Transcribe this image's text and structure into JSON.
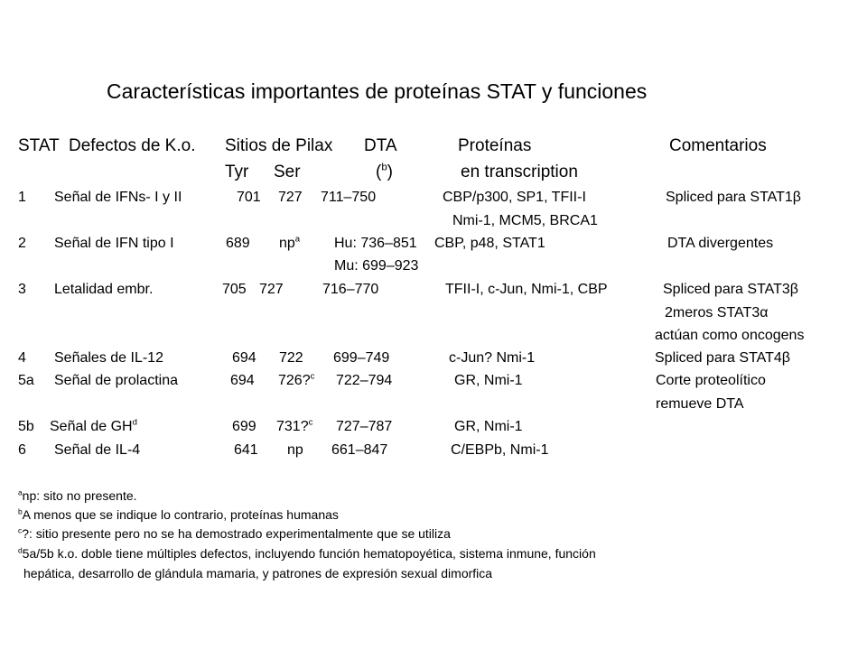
{
  "title": "Características importantes de proteínas STAT y funciones",
  "header": {
    "col_stat": "STAT",
    "col_ko": "Defectos de K.o.",
    "col_sites": "Sitios de Pilax",
    "col_dta": "DTA",
    "col_proteins": "Proteínas",
    "col_comments": "Comentarios",
    "sub_tyr": "Tyr",
    "sub_ser": "Ser",
    "sub_dta_note_open": "(",
    "sub_dta_note_sup": "b",
    "sub_dta_note_close": ")",
    "sub_proteins": "en transcription"
  },
  "rows": [
    {
      "stat": "1",
      "ko": "Señal de IFNs- I y II",
      "tyr": "701",
      "ser": "727",
      "dta": "711–750",
      "proteins": "CBP/p300, SP1, TFII-I",
      "comment": "Spliced para STAT1β",
      "proteins2": "Nmi-1, MCM5, BRCA1"
    },
    {
      "stat": "2",
      "ko": "Señal de IFN tipo I",
      "tyr": "689",
      "ser": "np",
      "ser_sup": "a",
      "dta": "Hu: 736–851",
      "dta2": "Mu: 699–923",
      "proteins": "CBP, p48, STAT1",
      "comment": "DTA divergentes"
    },
    {
      "stat": "3",
      "ko": "Letalidad embr.",
      "tyr": "705",
      "ser": "727",
      "dta": "716–770",
      "proteins": "TFII-I, c-Jun, Nmi-1, CBP",
      "comment": "Spliced para STAT3β",
      "comment2": "2meros STAT3α",
      "comment3": "actúan como oncogens"
    },
    {
      "stat": "4",
      "ko": "Señales de IL-12",
      "tyr": "694",
      "ser": "722",
      "dta": "699–749",
      "proteins": "c-Jun? Nmi-1",
      "comment": "Spliced para STAT4β"
    },
    {
      "stat": "5a",
      "ko": "Señal de prolactina",
      "tyr": "694",
      "ser": "726?",
      "ser_sup": "c",
      "dta": "722–794",
      "proteins": "GR, Nmi-1",
      "comment": "Corte proteolítico",
      "comment2": "remueve DTA"
    },
    {
      "stat": "5b",
      "ko": "Señal de GH",
      "ko_sup": "d",
      "tyr": "699",
      "ser": "731?",
      "ser_sup": "c",
      "dta": "727–787",
      "proteins": "GR, Nmi-1"
    },
    {
      "stat": "6",
      "ko": "Señal de IL-4",
      "tyr": "641",
      "ser": "np",
      "dta": "661–847",
      "proteins": "C/EBPb, Nmi-1"
    }
  ],
  "footnotes": {
    "a_mark": "a",
    "a_text": "np: sito no presente.",
    "b_mark": "b",
    "b_text": "A menos que se indique lo contrario, proteínas humanas",
    "c_mark": "c",
    "c_text": "?: sitio presente pero no se ha demostrado experimentalmente que se utiliza",
    "d_mark": "d",
    "d_text": "5a/5b k.o. doble tiene múltiples defectos, incluyendo función hematopoyética, sistema inmune, función",
    "d_text2": "hepática, desarrollo de glándula mamaria, y patrones de expresión sexual dimorfica"
  }
}
